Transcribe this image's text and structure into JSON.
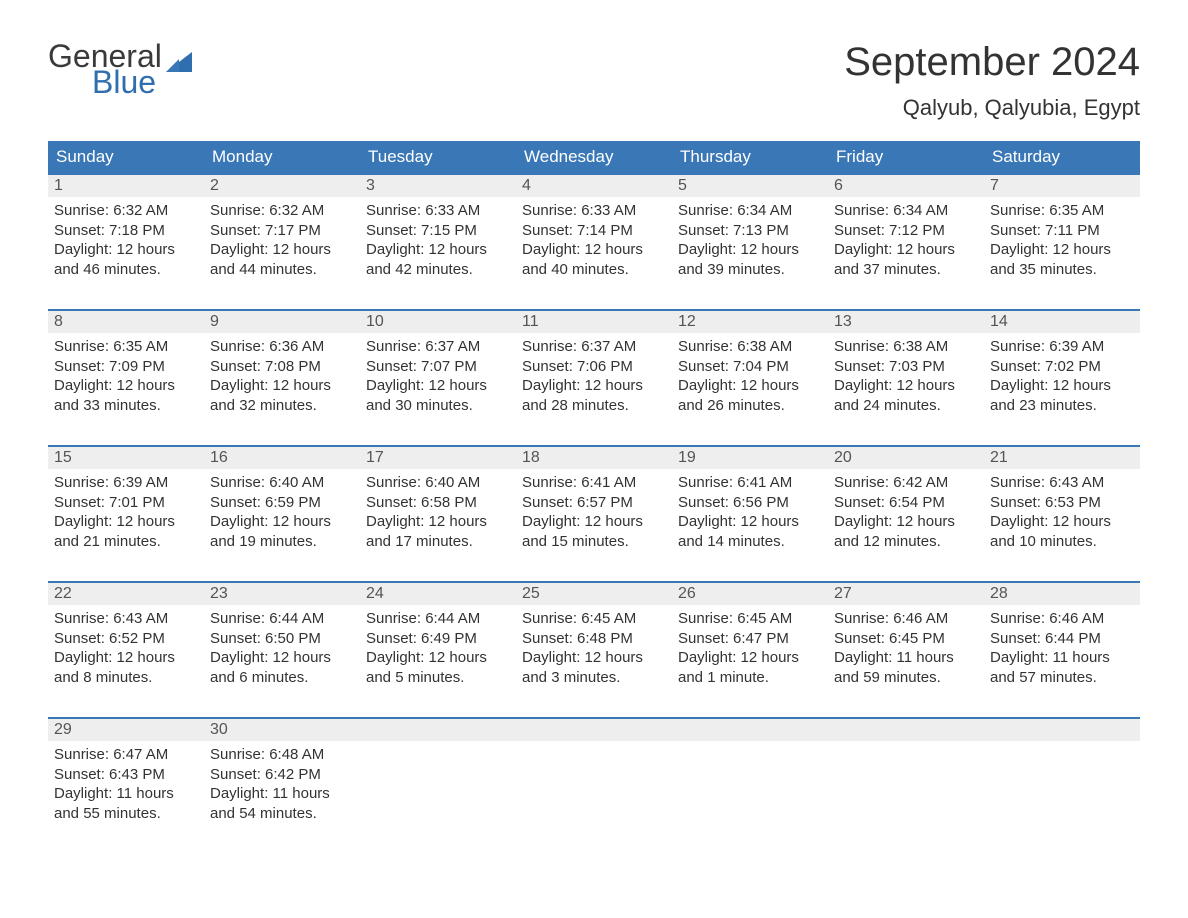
{
  "logo": {
    "text_general": "General",
    "text_blue": "Blue",
    "flag_color": "#2f6fb0",
    "general_color": "#3a3a3a",
    "blue_color": "#2f6fb0"
  },
  "header": {
    "month_title": "September 2024",
    "location": "Qalyub, Qalyubia, Egypt"
  },
  "colors": {
    "header_bg": "#3a77b6",
    "header_text": "#ffffff",
    "daynum_bg": "#eeeeee",
    "daynum_text": "#555555",
    "body_text": "#333333",
    "week_border": "#3a77b6",
    "page_bg": "#ffffff"
  },
  "typography": {
    "month_title_fontsize": 40,
    "location_fontsize": 22,
    "dayheader_fontsize": 17,
    "daynum_fontsize": 16,
    "body_fontsize": 15,
    "font_family": "Arial"
  },
  "day_labels": [
    "Sunday",
    "Monday",
    "Tuesday",
    "Wednesday",
    "Thursday",
    "Friday",
    "Saturday"
  ],
  "weeks": [
    [
      {
        "num": "1",
        "sunrise": "Sunrise: 6:32 AM",
        "sunset": "Sunset: 7:18 PM",
        "daylight1": "Daylight: 12 hours",
        "daylight2": "and 46 minutes."
      },
      {
        "num": "2",
        "sunrise": "Sunrise: 6:32 AM",
        "sunset": "Sunset: 7:17 PM",
        "daylight1": "Daylight: 12 hours",
        "daylight2": "and 44 minutes."
      },
      {
        "num": "3",
        "sunrise": "Sunrise: 6:33 AM",
        "sunset": "Sunset: 7:15 PM",
        "daylight1": "Daylight: 12 hours",
        "daylight2": "and 42 minutes."
      },
      {
        "num": "4",
        "sunrise": "Sunrise: 6:33 AM",
        "sunset": "Sunset: 7:14 PM",
        "daylight1": "Daylight: 12 hours",
        "daylight2": "and 40 minutes."
      },
      {
        "num": "5",
        "sunrise": "Sunrise: 6:34 AM",
        "sunset": "Sunset: 7:13 PM",
        "daylight1": "Daylight: 12 hours",
        "daylight2": "and 39 minutes."
      },
      {
        "num": "6",
        "sunrise": "Sunrise: 6:34 AM",
        "sunset": "Sunset: 7:12 PM",
        "daylight1": "Daylight: 12 hours",
        "daylight2": "and 37 minutes."
      },
      {
        "num": "7",
        "sunrise": "Sunrise: 6:35 AM",
        "sunset": "Sunset: 7:11 PM",
        "daylight1": "Daylight: 12 hours",
        "daylight2": "and 35 minutes."
      }
    ],
    [
      {
        "num": "8",
        "sunrise": "Sunrise: 6:35 AM",
        "sunset": "Sunset: 7:09 PM",
        "daylight1": "Daylight: 12 hours",
        "daylight2": "and 33 minutes."
      },
      {
        "num": "9",
        "sunrise": "Sunrise: 6:36 AM",
        "sunset": "Sunset: 7:08 PM",
        "daylight1": "Daylight: 12 hours",
        "daylight2": "and 32 minutes."
      },
      {
        "num": "10",
        "sunrise": "Sunrise: 6:37 AM",
        "sunset": "Sunset: 7:07 PM",
        "daylight1": "Daylight: 12 hours",
        "daylight2": "and 30 minutes."
      },
      {
        "num": "11",
        "sunrise": "Sunrise: 6:37 AM",
        "sunset": "Sunset: 7:06 PM",
        "daylight1": "Daylight: 12 hours",
        "daylight2": "and 28 minutes."
      },
      {
        "num": "12",
        "sunrise": "Sunrise: 6:38 AM",
        "sunset": "Sunset: 7:04 PM",
        "daylight1": "Daylight: 12 hours",
        "daylight2": "and 26 minutes."
      },
      {
        "num": "13",
        "sunrise": "Sunrise: 6:38 AM",
        "sunset": "Sunset: 7:03 PM",
        "daylight1": "Daylight: 12 hours",
        "daylight2": "and 24 minutes."
      },
      {
        "num": "14",
        "sunrise": "Sunrise: 6:39 AM",
        "sunset": "Sunset: 7:02 PM",
        "daylight1": "Daylight: 12 hours",
        "daylight2": "and 23 minutes."
      }
    ],
    [
      {
        "num": "15",
        "sunrise": "Sunrise: 6:39 AM",
        "sunset": "Sunset: 7:01 PM",
        "daylight1": "Daylight: 12 hours",
        "daylight2": "and 21 minutes."
      },
      {
        "num": "16",
        "sunrise": "Sunrise: 6:40 AM",
        "sunset": "Sunset: 6:59 PM",
        "daylight1": "Daylight: 12 hours",
        "daylight2": "and 19 minutes."
      },
      {
        "num": "17",
        "sunrise": "Sunrise: 6:40 AM",
        "sunset": "Sunset: 6:58 PM",
        "daylight1": "Daylight: 12 hours",
        "daylight2": "and 17 minutes."
      },
      {
        "num": "18",
        "sunrise": "Sunrise: 6:41 AM",
        "sunset": "Sunset: 6:57 PM",
        "daylight1": "Daylight: 12 hours",
        "daylight2": "and 15 minutes."
      },
      {
        "num": "19",
        "sunrise": "Sunrise: 6:41 AM",
        "sunset": "Sunset: 6:56 PM",
        "daylight1": "Daylight: 12 hours",
        "daylight2": "and 14 minutes."
      },
      {
        "num": "20",
        "sunrise": "Sunrise: 6:42 AM",
        "sunset": "Sunset: 6:54 PM",
        "daylight1": "Daylight: 12 hours",
        "daylight2": "and 12 minutes."
      },
      {
        "num": "21",
        "sunrise": "Sunrise: 6:43 AM",
        "sunset": "Sunset: 6:53 PM",
        "daylight1": "Daylight: 12 hours",
        "daylight2": "and 10 minutes."
      }
    ],
    [
      {
        "num": "22",
        "sunrise": "Sunrise: 6:43 AM",
        "sunset": "Sunset: 6:52 PM",
        "daylight1": "Daylight: 12 hours",
        "daylight2": "and 8 minutes."
      },
      {
        "num": "23",
        "sunrise": "Sunrise: 6:44 AM",
        "sunset": "Sunset: 6:50 PM",
        "daylight1": "Daylight: 12 hours",
        "daylight2": "and 6 minutes."
      },
      {
        "num": "24",
        "sunrise": "Sunrise: 6:44 AM",
        "sunset": "Sunset: 6:49 PM",
        "daylight1": "Daylight: 12 hours",
        "daylight2": "and 5 minutes."
      },
      {
        "num": "25",
        "sunrise": "Sunrise: 6:45 AM",
        "sunset": "Sunset: 6:48 PM",
        "daylight1": "Daylight: 12 hours",
        "daylight2": "and 3 minutes."
      },
      {
        "num": "26",
        "sunrise": "Sunrise: 6:45 AM",
        "sunset": "Sunset: 6:47 PM",
        "daylight1": "Daylight: 12 hours",
        "daylight2": "and 1 minute."
      },
      {
        "num": "27",
        "sunrise": "Sunrise: 6:46 AM",
        "sunset": "Sunset: 6:45 PM",
        "daylight1": "Daylight: 11 hours",
        "daylight2": "and 59 minutes."
      },
      {
        "num": "28",
        "sunrise": "Sunrise: 6:46 AM",
        "sunset": "Sunset: 6:44 PM",
        "daylight1": "Daylight: 11 hours",
        "daylight2": "and 57 minutes."
      }
    ],
    [
      {
        "num": "29",
        "sunrise": "Sunrise: 6:47 AM",
        "sunset": "Sunset: 6:43 PM",
        "daylight1": "Daylight: 11 hours",
        "daylight2": "and 55 minutes."
      },
      {
        "num": "30",
        "sunrise": "Sunrise: 6:48 AM",
        "sunset": "Sunset: 6:42 PM",
        "daylight1": "Daylight: 11 hours",
        "daylight2": "and 54 minutes."
      },
      {
        "empty": true
      },
      {
        "empty": true
      },
      {
        "empty": true
      },
      {
        "empty": true
      },
      {
        "empty": true
      }
    ]
  ]
}
